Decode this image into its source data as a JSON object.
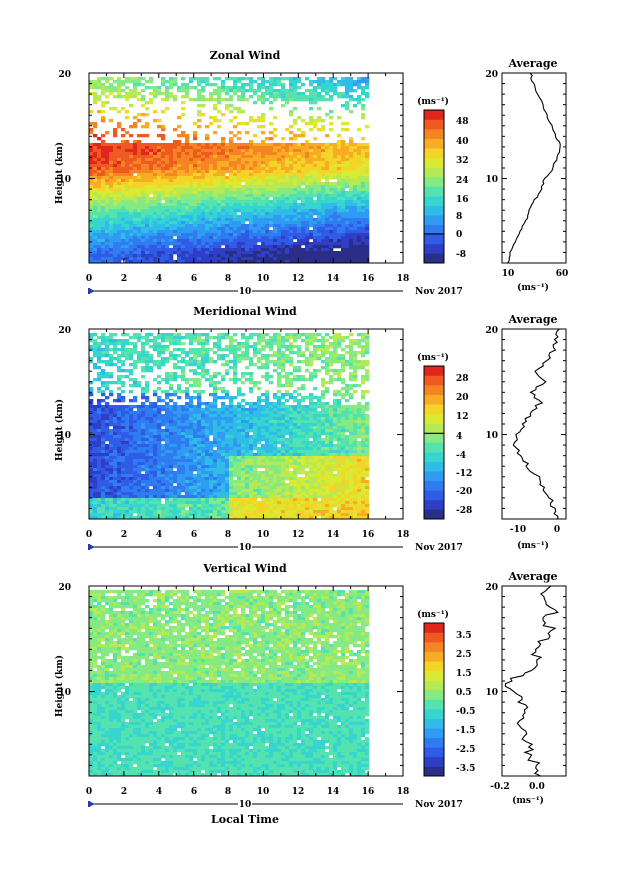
{
  "panels": [
    {
      "title": "Zonal Wind",
      "ylabel": "Height (km)",
      "y_ticks": [
        "20",
        "10"
      ],
      "x_ticks": [
        "0",
        "2",
        "4",
        "6",
        "8",
        "10",
        "12",
        "14",
        "16",
        "18"
      ],
      "date_marker": "10",
      "month_label": "Nov 2017",
      "colorbar_unit": "(ms⁻¹)",
      "colorbar_ticks": [
        "48",
        "40",
        "32",
        "24",
        "16",
        "8",
        "0",
        "-8"
      ],
      "avg_title": "Average",
      "avg_y_ticks": [
        "20",
        "10"
      ],
      "avg_x_ticks": [
        "10",
        "60"
      ],
      "avg_xlabel": "(ms⁻¹)"
    },
    {
      "title": "Meridional Wind",
      "ylabel": "Height (km)",
      "y_ticks": [
        "20",
        "10"
      ],
      "x_ticks": [
        "0",
        "2",
        "4",
        "6",
        "8",
        "10",
        "12",
        "14",
        "16",
        "18"
      ],
      "date_marker": "10",
      "month_label": "Nov 2017",
      "colorbar_unit": "(ms⁻¹)",
      "colorbar_ticks": [
        "28",
        "20",
        "12",
        "4",
        "-4",
        "-12",
        "-20",
        "-28"
      ],
      "avg_title": "Average",
      "avg_y_ticks": [
        "20",
        "10"
      ],
      "avg_x_ticks": [
        "-10",
        "0"
      ],
      "avg_xlabel": "(ms⁻¹)"
    },
    {
      "title": "Vertical Wind",
      "ylabel": "Height (km)",
      "y_ticks": [
        "20",
        "10"
      ],
      "x_ticks": [
        "0",
        "2",
        "4",
        "6",
        "8",
        "10",
        "12",
        "14",
        "16",
        "18"
      ],
      "date_marker": "10",
      "month_label": "Nov 2017",
      "colorbar_unit": "(ms⁻¹)",
      "colorbar_ticks": [
        "3.5",
        "2.5",
        "1.5",
        "0.5",
        "-0.5",
        "-1.5",
        "-2.5",
        "-3.5"
      ],
      "avg_title": "Average",
      "avg_y_ticks": [
        "20",
        "10"
      ],
      "avg_x_ticks": [
        "-0.2",
        "0.0"
      ],
      "avg_xlabel": "(ms⁻¹)"
    }
  ],
  "xlabel": "Local Time",
  "chart_data": [
    {
      "type": "heatmap",
      "title": "Zonal Wind",
      "ylabel": "Height (km)",
      "xlabel": "Local Time",
      "xlim": [
        0,
        18
      ],
      "ylim": [
        2,
        20
      ],
      "data_x_range": [
        0,
        16
      ],
      "colorbar_range": [
        -12,
        52
      ],
      "colorbar_ticks": [
        48,
        40,
        32,
        24,
        16,
        8,
        0,
        -8
      ],
      "profile_heights": [
        3,
        5,
        7,
        9,
        11,
        13,
        15,
        17,
        19
      ],
      "profile_values": [
        0,
        10,
        20,
        32,
        46,
        50,
        44,
        32,
        24
      ],
      "average_profile": {
        "title": "Average",
        "xlim": [
          0,
          60
        ],
        "heights": [
          2,
          3,
          4,
          5,
          6,
          7,
          8,
          9,
          10,
          11,
          12,
          13,
          14,
          15,
          16,
          17,
          18,
          19,
          20
        ],
        "values": [
          5,
          8,
          13,
          17,
          22,
          26,
          31,
          37,
          40,
          48,
          52,
          55,
          51,
          47,
          42,
          38,
          34,
          29,
          27
        ]
      }
    },
    {
      "type": "heatmap",
      "title": "Meridional Wind",
      "ylabel": "Height (km)",
      "xlabel": "Local Time",
      "xlim": [
        0,
        18
      ],
      "ylim": [
        2,
        20
      ],
      "data_x_range": [
        0,
        16
      ],
      "colorbar_range": [
        -32,
        32
      ],
      "colorbar_ticks": [
        28,
        20,
        12,
        4,
        -4,
        -12,
        -20,
        -28
      ],
      "average_profile": {
        "title": "Average",
        "xlim": [
          -18,
          2
        ],
        "heights": [
          2,
          3,
          4,
          5,
          6,
          7,
          8,
          9,
          10,
          11,
          12,
          13,
          14,
          15,
          16,
          17,
          18,
          19,
          20
        ],
        "values": [
          -1,
          -2,
          -3,
          -5,
          -7,
          -10,
          -12,
          -14,
          -13,
          -11,
          -9,
          -6,
          -9,
          -5,
          -7,
          -4,
          -2,
          -1,
          0
        ]
      }
    },
    {
      "type": "heatmap",
      "title": "Vertical Wind",
      "ylabel": "Height (km)",
      "xlabel": "Local Time",
      "xlim": [
        0,
        18
      ],
      "ylim": [
        2,
        20
      ],
      "data_x_range": [
        0,
        16
      ],
      "colorbar_range": [
        -4,
        4
      ],
      "colorbar_ticks": [
        3.5,
        2.5,
        1.5,
        0.5,
        -0.5,
        -1.5,
        -2.5,
        -3.5
      ],
      "average_profile": {
        "title": "Average",
        "xlim": [
          -0.3,
          0.25
        ],
        "heights": [
          2,
          3,
          4,
          5,
          6,
          7,
          8,
          9,
          10,
          11,
          12,
          13,
          14,
          15,
          16,
          17,
          18,
          19,
          20
        ],
        "values": [
          0.0,
          -0.02,
          -0.05,
          -0.08,
          -0.1,
          -0.12,
          -0.14,
          -0.12,
          -0.2,
          -0.25,
          -0.1,
          0.05,
          -0.05,
          0.08,
          0.12,
          0.1,
          0.15,
          0.08,
          0.12
        ]
      }
    }
  ]
}
